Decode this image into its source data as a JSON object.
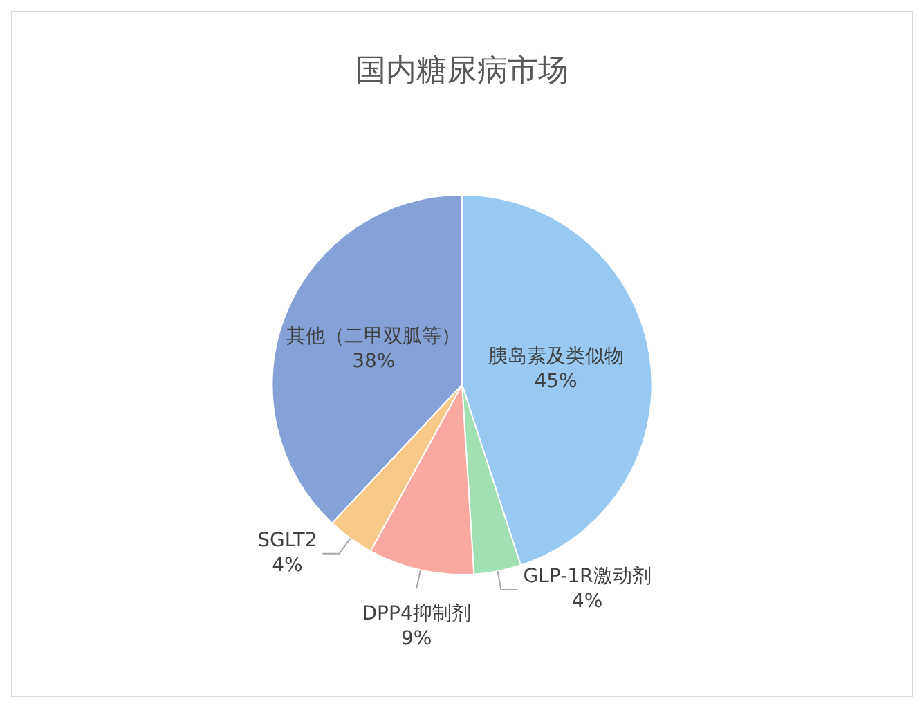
{
  "chart_data": {
    "type": "pie",
    "title": "国内糖尿病市场",
    "categories": [
      "胰岛素及类似物",
      "GLP-1R激动剂",
      "DPP4抑制剂",
      "SGLT2",
      "其他（二甲双胍等）"
    ],
    "values": [
      45,
      4,
      9,
      4,
      38
    ],
    "colors": [
      "#97c9f2",
      "#a0e0b2",
      "#f9a9a0",
      "#f9c98a",
      "#86a0d8"
    ],
    "value_labels": [
      "45%",
      "4%",
      "9%",
      "4%",
      "38%"
    ],
    "legend": false
  }
}
